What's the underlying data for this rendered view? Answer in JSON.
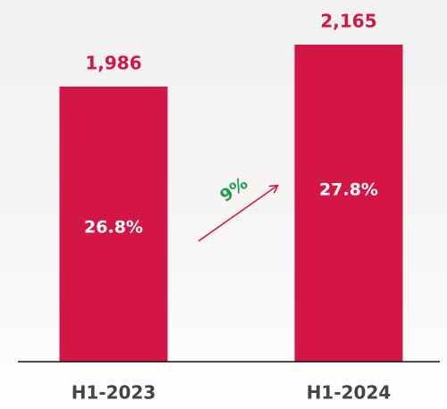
{
  "chart_data": {
    "type": "bar",
    "categories": [
      "H1-2023",
      "H1-2024"
    ],
    "values": [
      1986,
      2165
    ],
    "value_labels": [
      "1,986",
      "2,165"
    ],
    "inner_labels": [
      "26.8%",
      "27.8%"
    ],
    "growth_label": "9%",
    "color": "#d31645",
    "growth_color": "#1f9e4a",
    "ylim": [
      813,
      2165
    ]
  }
}
